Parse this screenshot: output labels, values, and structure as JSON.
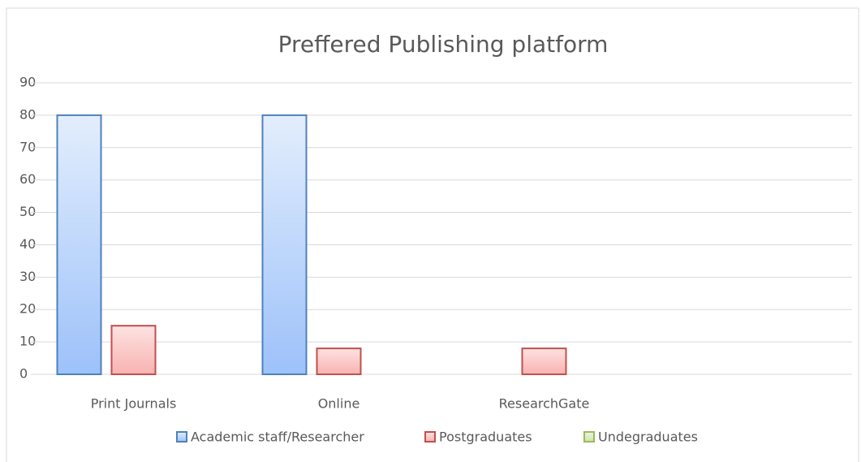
{
  "chart_data": {
    "type": "bar",
    "title": "Preffered Publishing platform",
    "categories": [
      "Print Journals",
      "Online",
      "ResearchGate",
      null
    ],
    "series": [
      {
        "name": "Academic staff/Researcher",
        "color": "#4f81bd",
        "values": [
          80,
          80,
          0,
          0
        ]
      },
      {
        "name": "Postgraduates",
        "color": "#c0504d",
        "values": [
          15,
          8,
          8,
          0
        ]
      },
      {
        "name": "Undegraduates",
        "color": "#9bbb59",
        "values": [
          0,
          0,
          0,
          0
        ]
      }
    ],
    "ylim": [
      0,
      90
    ],
    "yticks": [
      0,
      10,
      20,
      30,
      40,
      50,
      60,
      70,
      80,
      90
    ],
    "grid": true,
    "legend": "bottom"
  }
}
